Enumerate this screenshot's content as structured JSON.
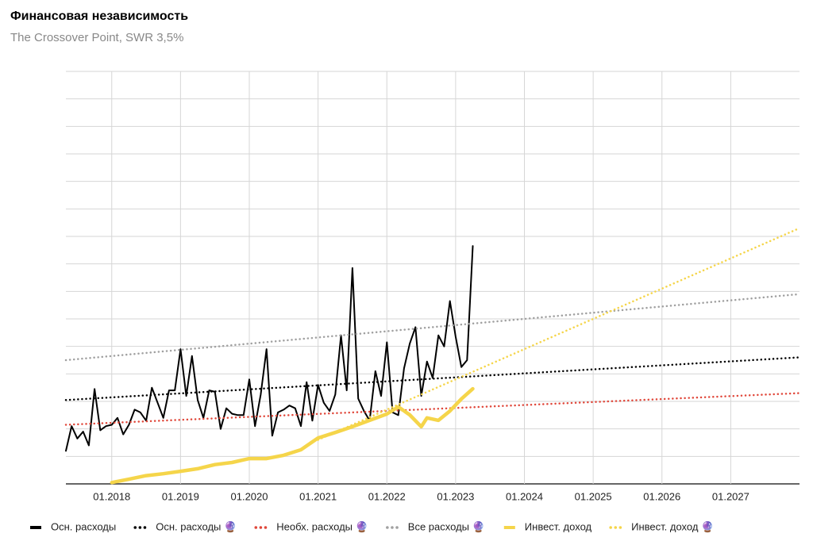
{
  "chart_data": {
    "type": "line",
    "title": "Финансовая независимость",
    "subtitle": "The Crossover Point, SWR 3,5%",
    "xlim": [
      "05.2017",
      "01.2028"
    ],
    "xticks": [
      "01.2018",
      "01.2019",
      "01.2020",
      "01.2021",
      "01.2022",
      "01.2023",
      "01.2024",
      "01.2025",
      "01.2026",
      "01.2027"
    ],
    "ylim": [
      0,
      15
    ],
    "yticks": [
      0,
      1,
      2,
      3,
      4,
      5,
      6,
      7,
      8,
      9,
      10,
      11,
      12,
      13,
      14,
      15
    ],
    "grid": true,
    "legend": "bottom",
    "series": [
      {
        "name": "Осн. расходы",
        "color": "#000000",
        "style": "solid",
        "x": [
          "05.2017",
          "06.2017",
          "07.2017",
          "08.2017",
          "09.2017",
          "10.2017",
          "11.2017",
          "12.2017",
          "01.2018",
          "02.2018",
          "03.2018",
          "04.2018",
          "05.2018",
          "06.2018",
          "07.2018",
          "08.2018",
          "09.2018",
          "10.2018",
          "11.2018",
          "12.2018",
          "01.2019",
          "02.2019",
          "03.2019",
          "04.2019",
          "05.2019",
          "06.2019",
          "07.2019",
          "08.2019",
          "09.2019",
          "10.2019",
          "11.2019",
          "12.2019",
          "01.2020",
          "02.2020",
          "03.2020",
          "04.2020",
          "05.2020",
          "06.2020",
          "07.2020",
          "08.2020",
          "09.2020",
          "10.2020",
          "11.2020",
          "12.2020",
          "01.2021",
          "02.2021",
          "03.2021",
          "04.2021",
          "05.2021",
          "06.2021",
          "07.2021",
          "08.2021",
          "09.2021",
          "10.2021",
          "11.2021",
          "12.2021",
          "01.2022",
          "02.2022",
          "03.2022",
          "04.2022",
          "05.2022",
          "06.2022",
          "07.2022",
          "08.2022",
          "09.2022",
          "10.2022",
          "11.2022",
          "12.2022",
          "01.2023",
          "02.2023",
          "03.2023",
          "04.2023"
        ],
        "values": [
          1.2,
          2.1,
          1.65,
          1.9,
          1.4,
          3.45,
          1.95,
          2.1,
          2.15,
          2.4,
          1.8,
          2.15,
          2.7,
          2.6,
          2.3,
          3.5,
          2.95,
          2.4,
          3.4,
          3.4,
          4.9,
          3.2,
          4.65,
          3.05,
          2.4,
          3.4,
          3.35,
          2.0,
          2.75,
          2.55,
          2.5,
          2.5,
          3.8,
          2.1,
          3.25,
          4.9,
          1.75,
          2.6,
          2.7,
          2.85,
          2.75,
          2.1,
          3.7,
          2.3,
          3.6,
          2.95,
          2.65,
          3.25,
          5.4,
          3.4,
          7.85,
          3.1,
          2.65,
          2.3,
          4.1,
          3.2,
          5.15,
          2.6,
          2.5,
          4.2,
          5.1,
          5.7,
          3.2,
          4.45,
          3.85,
          5.4,
          5.0,
          6.65,
          5.35,
          4.25,
          4.5,
          8.65
        ]
      },
      {
        "name": "Осн. расходы 🔮",
        "color": "#000000",
        "style": "dotted",
        "x": [
          "05.2017",
          "01.2028"
        ],
        "values": [
          3.05,
          4.6
        ]
      },
      {
        "name": "Необх. расходы 🔮",
        "color": "#e0473a",
        "style": "dotted",
        "x": [
          "05.2017",
          "01.2028"
        ],
        "values": [
          2.15,
          3.3
        ]
      },
      {
        "name": "Все расходы 🔮",
        "color": "#a0a0a0",
        "style": "dotted",
        "x": [
          "05.2017",
          "01.2028"
        ],
        "values": [
          4.5,
          6.9
        ]
      },
      {
        "name": "Инвест. доход",
        "color": "#f5d54a",
        "style": "solid",
        "x": [
          "01.2018",
          "04.2018",
          "07.2018",
          "10.2018",
          "01.2019",
          "04.2019",
          "07.2019",
          "10.2019",
          "01.2020",
          "04.2020",
          "07.2020",
          "10.2020",
          "01.2021",
          "04.2021",
          "07.2021",
          "10.2021",
          "01.2022",
          "03.2022",
          "05.2022",
          "07.2022",
          "08.2022",
          "10.2022",
          "12.2022",
          "02.2023",
          "04.2023"
        ],
        "values": [
          0.05,
          0.17,
          0.3,
          0.37,
          0.46,
          0.55,
          0.7,
          0.78,
          0.92,
          0.92,
          1.04,
          1.24,
          1.67,
          1.87,
          2.08,
          2.31,
          2.54,
          2.8,
          2.51,
          2.08,
          2.4,
          2.31,
          2.65,
          3.09,
          3.46
        ]
      },
      {
        "name": "Инвест. доход 🔮",
        "color": "#f5d54a",
        "style": "dotted",
        "x": [
          "01.2021",
          "01.2028"
        ],
        "values": [
          1.6,
          9.3
        ]
      }
    ]
  }
}
